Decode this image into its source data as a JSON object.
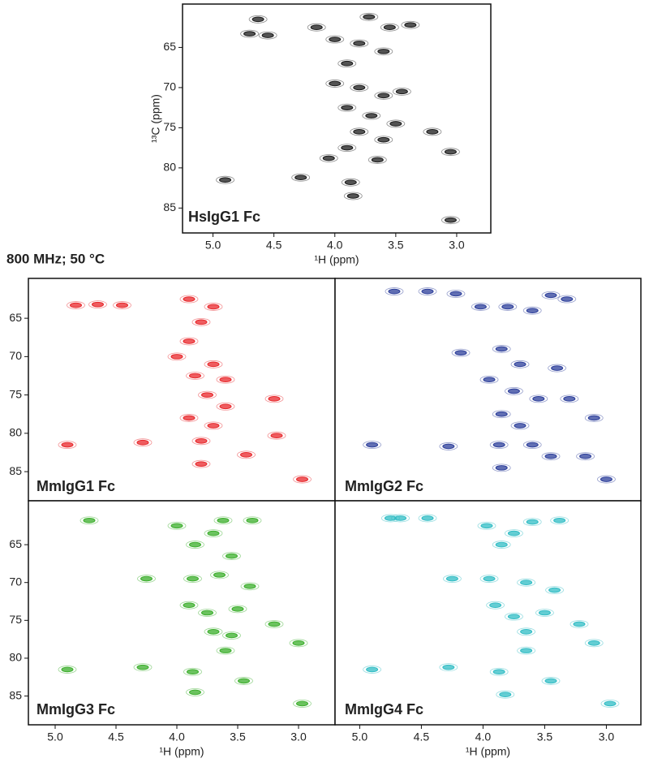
{
  "conditions": "800 MHz; 50 °C",
  "chart_data": [
    {
      "type": "scatter",
      "title": "HsIgG1 Fc",
      "color": "#1a1a1a",
      "xlabel": "¹H (ppm)",
      "ylabel": "¹³C (ppm)",
      "xlim": [
        5.25,
        2.72
      ],
      "ylim": [
        88.1,
        59.6
      ],
      "xticks": [
        {
          "value": 5,
          "label": "5.0"
        },
        4.5,
        {
          "value": 4,
          "label": "4.0"
        },
        3.5,
        {
          "value": 3,
          "label": "3.0"
        }
      ],
      "yticks": [
        65,
        70,
        75,
        80,
        85
      ],
      "x": [
        4.9,
        4.28,
        4.05,
        3.87,
        3.85,
        3.2,
        3.05,
        3.38,
        3.55,
        3.72,
        4.63,
        4.7,
        4.55,
        4.15,
        4.0,
        3.8,
        3.6,
        3.9,
        4.0,
        3.8,
        3.6,
        3.9,
        3.7,
        3.5,
        3.8,
        3.6,
        3.65,
        3.9,
        3.45,
        3.05
      ],
      "y": [
        81.5,
        81.2,
        78.8,
        81.8,
        83.5,
        75.5,
        78,
        62.2,
        62.5,
        61.2,
        61.5,
        63.3,
        63.5,
        62.5,
        64,
        64.5,
        65.5,
        67,
        69.5,
        70,
        71,
        72.5,
        73.5,
        74.5,
        75.5,
        76.5,
        79,
        77.5,
        70.5,
        86.5
      ]
    },
    {
      "type": "scatter",
      "title": "MmIgG1 Fc",
      "color": "#e8262a",
      "xlim": [
        5.22,
        2.7
      ],
      "ylim": [
        88.8,
        59.8
      ],
      "yticks": [
        65,
        70,
        75,
        80,
        85
      ],
      "x": [
        4.9,
        4.28,
        4.83,
        4.65,
        4.45,
        3.2,
        3.18,
        3.43,
        2.97,
        3.9,
        3.7,
        3.8,
        3.9,
        4.0,
        3.7,
        3.85,
        3.6,
        3.75,
        3.6,
        3.9,
        3.7,
        3.8,
        3.8
      ],
      "y": [
        81.5,
        81.2,
        63.3,
        63.2,
        63.3,
        75.5,
        80.3,
        82.8,
        86,
        62.5,
        63.5,
        65.5,
        68,
        70,
        71,
        72.5,
        73,
        75,
        76.5,
        78,
        79,
        81,
        84
      ]
    },
    {
      "type": "scatter",
      "title": "MmIgG2 Fc",
      "color": "#2b3d9a",
      "xlim": [
        5.2,
        2.72
      ],
      "ylim": [
        88.8,
        59.8
      ],
      "x": [
        4.9,
        4.28,
        4.72,
        4.45,
        4.22,
        4.02,
        3.8,
        3.6,
        3.45,
        3.32,
        4.18,
        3.85,
        3.7,
        3.4,
        3.95,
        3.75,
        3.55,
        3.3,
        3.1,
        3.85,
        3.7,
        3.87,
        3.6,
        3.85,
        3.45,
        3.17,
        3.0
      ],
      "y": [
        81.5,
        81.7,
        61.5,
        61.5,
        61.8,
        63.5,
        63.5,
        64,
        62,
        62.5,
        69.5,
        69,
        71,
        71.5,
        73,
        74.5,
        75.5,
        75.5,
        78,
        77.5,
        79,
        81.5,
        81.5,
        84.5,
        83,
        83,
        86
      ]
    },
    {
      "type": "scatter",
      "title": "MmIgG3 Fc",
      "color": "#3aae2a",
      "xlabel": "¹H (ppm)",
      "xlim": [
        5.22,
        2.7
      ],
      "ylim": [
        88.8,
        59.2
      ],
      "xticks": [
        {
          "value": 5,
          "label": "5.0"
        },
        4.5,
        {
          "value": 4,
          "label": "4.0"
        },
        3.5,
        {
          "value": 3,
          "label": "3.0"
        }
      ],
      "yticks": [
        65,
        70,
        75,
        80,
        85
      ],
      "x": [
        4.9,
        4.28,
        4.72,
        4.0,
        3.7,
        3.62,
        3.38,
        3.85,
        3.55,
        4.25,
        3.87,
        3.65,
        3.4,
        3.9,
        3.75,
        3.5,
        3.2,
        3.7,
        3.55,
        3.0,
        3.6,
        3.87,
        3.85,
        3.45,
        2.97
      ],
      "y": [
        81.5,
        81.2,
        61.8,
        62.5,
        63.5,
        61.8,
        61.8,
        65,
        66.5,
        69.5,
        69.5,
        69,
        70.5,
        73,
        74,
        73.5,
        75.5,
        76.5,
        77,
        78,
        79,
        81.8,
        84.5,
        83,
        86
      ]
    },
    {
      "type": "scatter",
      "title": "MmIgG4 Fc",
      "color": "#2fbcc4",
      "xlabel": "¹H (ppm)",
      "xlim": [
        5.2,
        2.72
      ],
      "ylim": [
        88.8,
        59.2
      ],
      "xticks": [
        {
          "value": 5,
          "label": "5.0"
        },
        4.5,
        {
          "value": 4,
          "label": "4.0"
        },
        3.5,
        {
          "value": 3,
          "label": "3.0"
        }
      ],
      "x": [
        4.9,
        4.28,
        4.75,
        4.67,
        4.45,
        3.97,
        3.75,
        3.6,
        3.38,
        3.85,
        4.25,
        3.95,
        3.65,
        3.42,
        3.9,
        3.75,
        3.5,
        3.22,
        3.65,
        3.1,
        3.65,
        3.87,
        3.82,
        3.45,
        2.97
      ],
      "y": [
        81.5,
        81.2,
        61.5,
        61.5,
        61.5,
        62.5,
        63.5,
        62,
        61.8,
        65,
        69.5,
        69.5,
        70,
        71,
        73,
        74.5,
        74,
        75.5,
        76.5,
        78,
        79,
        81.8,
        84.8,
        83,
        86
      ]
    }
  ]
}
